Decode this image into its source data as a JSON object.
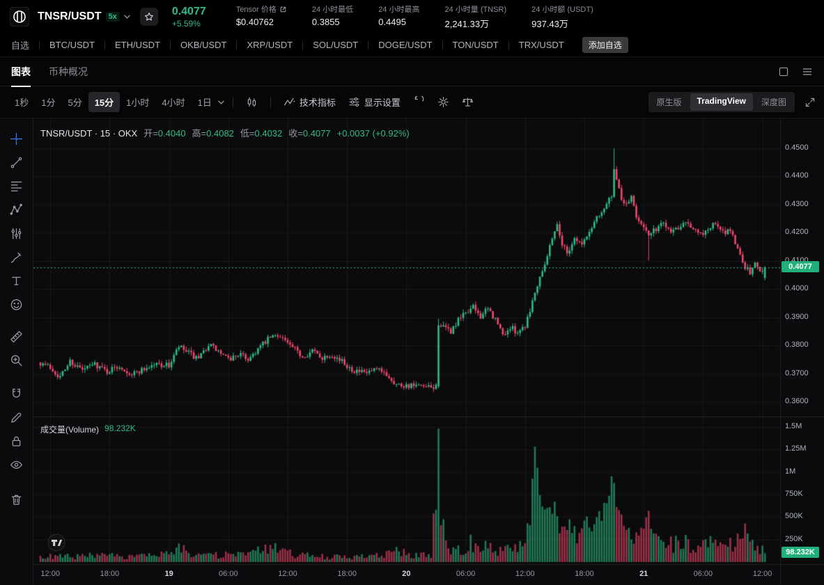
{
  "header": {
    "pair": "TNSR/USDT",
    "leverage": "5x",
    "price": "0.4077",
    "change": "+5.59%",
    "stats": [
      {
        "label": "Tensor 价格",
        "value": "$0.40762",
        "external": true
      },
      {
        "label": "24 小时最低",
        "value": "0.3855"
      },
      {
        "label": "24 小时最高",
        "value": "0.4495"
      },
      {
        "label": "24 小时量 (TNSR)",
        "value": "2,241.33万"
      },
      {
        "label": "24 小时额 (USDT)",
        "value": "937.43万"
      }
    ]
  },
  "watchlist": {
    "label": "自选",
    "pairs": [
      "BTC/USDT",
      "ETH/USDT",
      "OKB/USDT",
      "XRP/USDT",
      "SOL/USDT",
      "DOGE/USDT",
      "TON/USDT",
      "TRX/USDT"
    ],
    "add_label": "添加自选"
  },
  "view_tabs": {
    "chart": "图表",
    "overview": "币种概况"
  },
  "toolbar": {
    "intervals": [
      "1秒",
      "1分",
      "5分",
      "15分",
      "1小时",
      "4小时",
      "1日"
    ],
    "active_interval": "15分",
    "indicators_label": "技术指标",
    "settings_label": "显示设置",
    "right_tabs": [
      "原生版",
      "TradingView",
      "深度图"
    ],
    "active_right_tab": "TradingView"
  },
  "sidebar": {
    "tools": [
      "crosshair-icon",
      "trendline-icon",
      "fib-retracement-icon",
      "xabcd-pattern-icon",
      "forecast-icon",
      "brush-icon",
      "text-icon",
      "emoji-icon",
      "ruler-icon",
      "zoom-in-icon",
      "magnet-icon",
      "pencil-icon",
      "lock-icon",
      "eye-icon",
      "trash-icon"
    ]
  },
  "legend": {
    "title": "TNSR/USDT · 15 · OKX",
    "open_label": "开=",
    "open": "0.4040",
    "high_label": "高=",
    "high": "0.4082",
    "low_label": "低=",
    "low": "0.4032",
    "close_label": "收=",
    "close": "0.4077",
    "change": "+0.0037 (+0.92%)"
  },
  "volume_pane": {
    "label": "成交量(Volume)",
    "value": "98.232K"
  },
  "price_axis": {
    "ticks": [
      "0.4500",
      "0.4400",
      "0.4300",
      "0.4200",
      "0.4100",
      "0.4000",
      "0.3900",
      "0.3800",
      "0.3700",
      "0.3600"
    ],
    "last_price_label": "0.4077"
  },
  "volume_axis": {
    "ticks": [
      {
        "label": "1.5M",
        "value": 1500000
      },
      {
        "label": "1.25M",
        "value": 1250000
      },
      {
        "label": "1M",
        "value": 1000000
      },
      {
        "label": "750K",
        "value": 750000
      },
      {
        "label": "500K",
        "value": 500000
      },
      {
        "label": "250K",
        "value": 250000
      }
    ],
    "last_label": "98.232K"
  },
  "chart_data": {
    "type": "candlestick",
    "symbol": "TNSR/USDT",
    "exchange": "OKX",
    "interval": "15m",
    "visible_last_ohlc": {
      "open": 0.404,
      "high": 0.4082,
      "low": 0.4032,
      "close": 0.4077,
      "change": "+0.0037 (+0.92%)"
    },
    "last_price": 0.4077,
    "last_volume_value": 98232,
    "price_range": [
      0.36,
      0.45
    ],
    "volume_max": 1500000,
    "count": 294,
    "seed": 7,
    "noise": 0.0011,
    "wick": 0.0013,
    "colors": {
      "up": "#2ebd85",
      "down": "#f0486c"
    },
    "close_keypoints": [
      [
        0,
        0.374
      ],
      [
        4,
        0.3722
      ],
      [
        8,
        0.3688
      ],
      [
        12,
        0.3745
      ],
      [
        17,
        0.3712
      ],
      [
        22,
        0.3735
      ],
      [
        27,
        0.3708
      ],
      [
        32,
        0.3728
      ],
      [
        37,
        0.3698
      ],
      [
        42,
        0.3718
      ],
      [
        47,
        0.3735
      ],
      [
        52,
        0.3728
      ],
      [
        56,
        0.3795
      ],
      [
        60,
        0.3772
      ],
      [
        64,
        0.3748
      ],
      [
        68,
        0.3805
      ],
      [
        72,
        0.3778
      ],
      [
        76,
        0.3748
      ],
      [
        80,
        0.377
      ],
      [
        84,
        0.3752
      ],
      [
        88,
        0.3788
      ],
      [
        93,
        0.3828
      ],
      [
        97,
        0.3838
      ],
      [
        101,
        0.3798
      ],
      [
        106,
        0.3762
      ],
      [
        110,
        0.378
      ],
      [
        114,
        0.3758
      ],
      [
        118,
        0.377
      ],
      [
        122,
        0.3742
      ],
      [
        127,
        0.3712
      ],
      [
        131,
        0.37
      ],
      [
        136,
        0.3712
      ],
      [
        140,
        0.3698
      ],
      [
        144,
        0.3662
      ],
      [
        149,
        0.3658
      ],
      [
        154,
        0.3652
      ],
      [
        158,
        0.3648
      ],
      [
        160,
        0.3655
      ],
      [
        161,
        0.388
      ],
      [
        163,
        0.3862
      ],
      [
        166,
        0.385
      ],
      [
        169,
        0.3888
      ],
      [
        172,
        0.3918
      ],
      [
        175,
        0.3935
      ],
      [
        178,
        0.3905
      ],
      [
        181,
        0.3928
      ],
      [
        184,
        0.3892
      ],
      [
        187,
        0.3838
      ],
      [
        190,
        0.3862
      ],
      [
        193,
        0.385
      ],
      [
        196,
        0.3872
      ],
      [
        199,
        0.3958
      ],
      [
        202,
        0.4048
      ],
      [
        205,
        0.4118
      ],
      [
        207,
        0.4188
      ],
      [
        209,
        0.4228
      ],
      [
        211,
        0.4162
      ],
      [
        213,
        0.4128
      ],
      [
        216,
        0.4182
      ],
      [
        219,
        0.4158
      ],
      [
        222,
        0.4202
      ],
      [
        225,
        0.4258
      ],
      [
        228,
        0.4288
      ],
      [
        231,
        0.4332
      ],
      [
        232,
        0.4415
      ],
      [
        234,
        0.4352
      ],
      [
        236,
        0.4298
      ],
      [
        239,
        0.4322
      ],
      [
        241,
        0.4258
      ],
      [
        244,
        0.4228
      ],
      [
        246,
        0.4185
      ],
      [
        249,
        0.4215
      ],
      [
        252,
        0.4238
      ],
      [
        255,
        0.4208
      ],
      [
        258,
        0.4222
      ],
      [
        261,
        0.4248
      ],
      [
        264,
        0.4212
      ],
      [
        267,
        0.4192
      ],
      [
        270,
        0.4215
      ],
      [
        273,
        0.4232
      ],
      [
        276,
        0.4198
      ],
      [
        279,
        0.4212
      ],
      [
        281,
        0.4165
      ],
      [
        283,
        0.4122
      ],
      [
        285,
        0.4082
      ],
      [
        287,
        0.4055
      ],
      [
        289,
        0.4092
      ],
      [
        291,
        0.4068
      ],
      [
        293,
        0.4077
      ]
    ],
    "volume_keypoints": [
      [
        0,
        55000
      ],
      [
        20,
        65000
      ],
      [
        40,
        60000
      ],
      [
        52,
        80000
      ],
      [
        56,
        140000
      ],
      [
        70,
        70000
      ],
      [
        85,
        90000
      ],
      [
        93,
        150000
      ],
      [
        105,
        70000
      ],
      [
        120,
        55000
      ],
      [
        135,
        60000
      ],
      [
        144,
        110000
      ],
      [
        152,
        70000
      ],
      [
        158,
        90000
      ],
      [
        160,
        600000
      ],
      [
        161,
        1480000
      ],
      [
        162,
        380000
      ],
      [
        165,
        180000
      ],
      [
        170,
        160000
      ],
      [
        175,
        220000
      ],
      [
        180,
        160000
      ],
      [
        185,
        140000
      ],
      [
        190,
        130000
      ],
      [
        195,
        160000
      ],
      [
        198,
        420000
      ],
      [
        200,
        1280000
      ],
      [
        202,
        620000
      ],
      [
        204,
        480000
      ],
      [
        206,
        700000
      ],
      [
        208,
        560000
      ],
      [
        210,
        380000
      ],
      [
        213,
        300000
      ],
      [
        216,
        350000
      ],
      [
        219,
        280000
      ],
      [
        222,
        380000
      ],
      [
        225,
        480000
      ],
      [
        228,
        560000
      ],
      [
        230,
        700000
      ],
      [
        232,
        900000
      ],
      [
        234,
        560000
      ],
      [
        237,
        380000
      ],
      [
        240,
        320000
      ],
      [
        243,
        300000
      ],
      [
        246,
        480000
      ],
      [
        250,
        240000
      ],
      [
        255,
        180000
      ],
      [
        260,
        220000
      ],
      [
        265,
        160000
      ],
      [
        270,
        200000
      ],
      [
        275,
        160000
      ],
      [
        279,
        220000
      ],
      [
        283,
        330000
      ],
      [
        286,
        280000
      ],
      [
        289,
        180000
      ],
      [
        292,
        120000
      ],
      [
        293,
        98232
      ]
    ],
    "overrides": {
      "161": {
        "o": 0.3655,
        "l": 0.3648,
        "h": 0.3895,
        "v": 1480000
      },
      "200": {
        "v": 1280000
      },
      "209": {
        "h": 0.424
      },
      "232": {
        "h": 0.45
      },
      "246": {
        "l": 0.4102
      },
      "293": {
        "o": 0.404,
        "h": 0.4082,
        "l": 0.4032,
        "c": 0.4077,
        "v": 98232
      }
    },
    "time_ticks": [
      {
        "label": "12:00",
        "i": 4
      },
      {
        "label": "18:00",
        "i": 28
      },
      {
        "label": "19",
        "i": 52,
        "major": true
      },
      {
        "label": "06:00",
        "i": 76
      },
      {
        "label": "12:00",
        "i": 100
      },
      {
        "label": "18:00",
        "i": 124
      },
      {
        "label": "20",
        "i": 148,
        "major": true
      },
      {
        "label": "06:00",
        "i": 172
      },
      {
        "label": "12:00",
        "i": 196
      },
      {
        "label": "18:00",
        "i": 220
      },
      {
        "label": "21",
        "i": 244,
        "major": true
      },
      {
        "label": "06:00",
        "i": 268
      },
      {
        "label": "12:00",
        "i": 292
      }
    ]
  }
}
